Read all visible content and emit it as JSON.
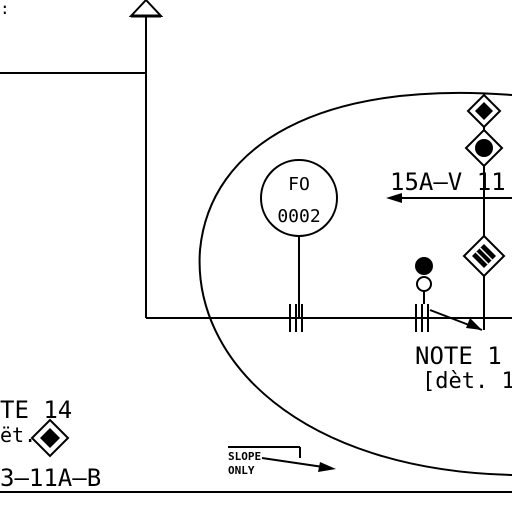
{
  "drawing": {
    "instrument": {
      "tag": "FO",
      "number": "0002"
    },
    "line_label": "15A–V 11",
    "note_right": {
      "line1": "NOTE 1",
      "line2": "[dèt. 1"
    },
    "note_left": {
      "line1": "TE 14",
      "line2": "ët."
    },
    "line_number": "3–11A–B",
    "slope": {
      "line1": "SLOPE",
      "line2": "ONLY"
    },
    "top_left_fragment": ":"
  },
  "colors": {
    "line": "#000000",
    "background": "#ffffff"
  }
}
